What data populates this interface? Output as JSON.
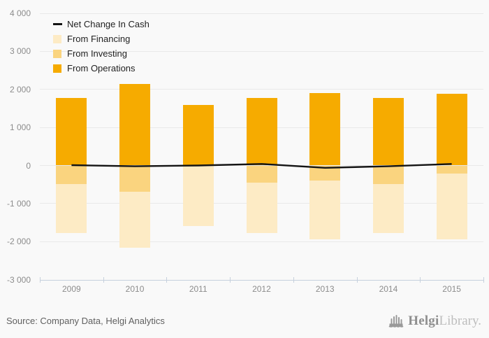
{
  "chart_data": {
    "type": "bar",
    "subtype": "stacked-bars-with-line",
    "title": "",
    "xlabel": "",
    "ylabel": "",
    "categories": [
      "2009",
      "2010",
      "2011",
      "2012",
      "2013",
      "2014",
      "2015"
    ],
    "series": [
      {
        "name": "From Operations",
        "type": "bar",
        "color": "#F6AB00",
        "values": [
          1780,
          2140,
          1590,
          1780,
          1910,
          1780,
          1890
        ]
      },
      {
        "name": "From Investing",
        "type": "bar",
        "color": "#FAD47F",
        "values": [
          -490,
          -680,
          0,
          -450,
          -400,
          -490,
          -210
        ]
      },
      {
        "name": "From Financing",
        "type": "bar",
        "color": "#FDEBC5",
        "values": [
          -1290,
          -1480,
          -1590,
          -1330,
          -1540,
          -1290,
          -1740
        ]
      },
      {
        "name": "Net Change In Cash",
        "type": "line",
        "color": "#141414",
        "values": [
          10,
          -20,
          0,
          40,
          -60,
          -20,
          40
        ]
      }
    ],
    "ylim": [
      -3000,
      4000
    ],
    "y_ticks": [
      {
        "value": 4000,
        "label": "4 000"
      },
      {
        "value": 3000,
        "label": "3 000"
      },
      {
        "value": 2000,
        "label": "2 000"
      },
      {
        "value": 1000,
        "label": "1 000"
      },
      {
        "value": 0,
        "label": "0"
      },
      {
        "value": -1000,
        "label": "-1 000"
      },
      {
        "value": -2000,
        "label": "-2 000"
      },
      {
        "value": -3000,
        "label": "-3 000"
      }
    ],
    "grid": "horizontal",
    "legend_position": "top-left"
  },
  "legend": {
    "items": [
      {
        "label": "Net Change In Cash",
        "marker": "line",
        "color": "#141414"
      },
      {
        "label": "From Financing",
        "marker": "square",
        "color": "#FDEBC5"
      },
      {
        "label": "From Investing",
        "marker": "square",
        "color": "#FAD47F"
      },
      {
        "label": "From Operations",
        "marker": "square",
        "color": "#F6AB00"
      }
    ]
  },
  "footer": {
    "source": "Source: Company Data, Helgi Analytics",
    "logo_bold": "Helgi",
    "logo_light": "Library."
  },
  "colors": {
    "background": "#f9f9f9",
    "gridline": "#e9e9e9",
    "axis": "#c6d0dd",
    "tick_label": "#8c8c8c",
    "line_series": "#141414"
  }
}
